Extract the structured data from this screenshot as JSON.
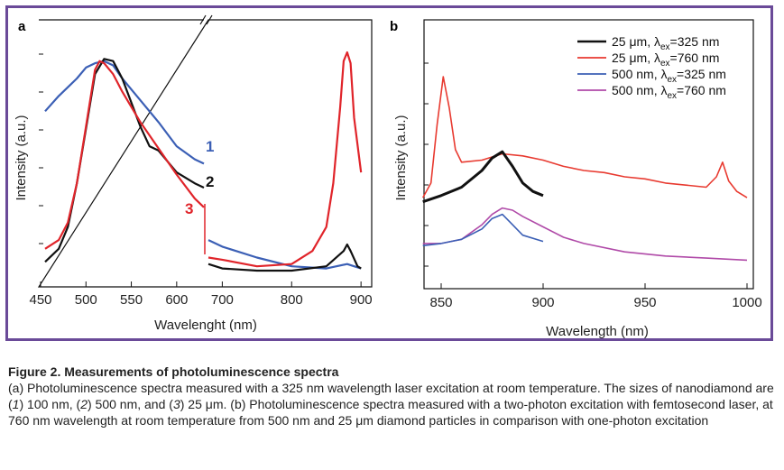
{
  "panels": {
    "a": {
      "letter": "a"
    },
    "b": {
      "letter": "b"
    }
  },
  "chart_data": [
    {
      "panel": "a",
      "type": "line",
      "xlabel": "Wavelenght (nm)",
      "ylabel": "Intensity (a.u.)",
      "x_ticks_left": [
        450,
        500,
        550,
        600
      ],
      "x_ticks_right": [
        700,
        800,
        900
      ],
      "x_break_between": [
        630,
        680
      ],
      "xlim": [
        450,
        905
      ],
      "ylim": [
        0,
        1
      ],
      "curve_labels": [
        {
          "text": "1",
          "color": "#3b5fb5"
        },
        {
          "text": "2",
          "color": "#111111"
        },
        {
          "text": "3",
          "color": "#e0242a"
        }
      ],
      "series": [
        {
          "color": "#3b5fb5",
          "x": [
            455,
            470,
            480,
            490,
            500,
            510,
            520,
            530,
            540,
            560,
            580,
            600,
            620,
            630,
            680,
            700,
            750,
            800,
            850,
            880,
            890,
            900
          ],
          "y": [
            0.73,
            0.8,
            0.84,
            0.88,
            0.93,
            0.95,
            0.96,
            0.94,
            0.88,
            0.78,
            0.68,
            0.57,
            0.51,
            0.49,
            0.14,
            0.11,
            0.06,
            0.02,
            0.01,
            0.03,
            0.02,
            0.01
          ]
        },
        {
          "color": "#111111",
          "x": [
            455,
            470,
            480,
            490,
            500,
            510,
            520,
            530,
            540,
            560,
            570,
            580,
            600,
            620,
            630,
            680,
            700,
            750,
            800,
            850,
            875,
            880,
            885,
            895,
            900
          ],
          "y": [
            0.04,
            0.1,
            0.2,
            0.4,
            0.65,
            0.9,
            0.97,
            0.96,
            0.88,
            0.66,
            0.57,
            0.55,
            0.45,
            0.4,
            0.38,
            0.03,
            0.01,
            0.0,
            0.0,
            0.02,
            0.09,
            0.12,
            0.09,
            0.02,
            0.01
          ]
        },
        {
          "color": "#e0242a",
          "x": [
            455,
            470,
            480,
            490,
            500,
            510,
            515,
            520,
            530,
            540,
            560,
            580,
            600,
            620,
            630,
            680,
            700,
            750,
            800,
            830,
            850,
            860,
            870,
            875,
            880,
            885,
            890,
            900
          ],
          "y": [
            0.1,
            0.14,
            0.22,
            0.4,
            0.66,
            0.92,
            0.96,
            0.95,
            0.9,
            0.82,
            0.68,
            0.56,
            0.44,
            0.33,
            0.29,
            0.06,
            0.05,
            0.02,
            0.03,
            0.09,
            0.2,
            0.4,
            0.75,
            0.96,
            1.0,
            0.95,
            0.7,
            0.45
          ]
        }
      ]
    },
    {
      "panel": "b",
      "type": "line",
      "xlabel": "Wavelength (nm)",
      "ylabel": "Intensity (a.u.)",
      "x_ticks": [
        850,
        900,
        950,
        1000
      ],
      "xlim": [
        840,
        1000
      ],
      "ylim": [
        0,
        1
      ],
      "legend_placement": "top-right",
      "series": [
        {
          "name": "25 μm, λex=325 nm",
          "name_main": "25 μm, λ",
          "name_sub": "ex",
          "name_end": "=325 nm",
          "color": "#111111",
          "x": [
            841,
            850,
            860,
            870,
            875,
            880,
            885,
            890,
            895,
            900
          ],
          "y": [
            0.33,
            0.36,
            0.4,
            0.48,
            0.54,
            0.57,
            0.5,
            0.42,
            0.38,
            0.36
          ]
        },
        {
          "name": "25 μm, λex=760 nm",
          "name_main": "25 μm, λ",
          "name_sub": "ex",
          "name_end": "=760 nm",
          "color": "#e83a30",
          "x": [
            841,
            845,
            848,
            851,
            854,
            857,
            860,
            870,
            880,
            890,
            900,
            910,
            920,
            930,
            940,
            950,
            960,
            970,
            980,
            985,
            988,
            991,
            995,
            1000
          ],
          "y": [
            0.35,
            0.42,
            0.7,
            0.93,
            0.78,
            0.58,
            0.52,
            0.53,
            0.56,
            0.55,
            0.53,
            0.5,
            0.48,
            0.47,
            0.45,
            0.44,
            0.42,
            0.41,
            0.4,
            0.45,
            0.52,
            0.43,
            0.38,
            0.35
          ]
        },
        {
          "name": "500 nm, λex=325 nm",
          "name_main": "500 nm, λ",
          "name_sub": "ex",
          "name_end": "=325 nm",
          "color": "#3b5fb5",
          "x": [
            841,
            850,
            860,
            870,
            875,
            880,
            885,
            890,
            900
          ],
          "y": [
            0.12,
            0.13,
            0.15,
            0.2,
            0.25,
            0.27,
            0.22,
            0.17,
            0.14
          ]
        },
        {
          "name": "500 nm, λex=760 nm",
          "name_main": "500 nm, λ",
          "name_sub": "ex",
          "name_end": "=760 nm",
          "color": "#b04aa8",
          "x": [
            841,
            850,
            860,
            870,
            875,
            880,
            885,
            890,
            900,
            910,
            920,
            940,
            960,
            980,
            1000
          ],
          "y": [
            0.13,
            0.13,
            0.15,
            0.22,
            0.27,
            0.3,
            0.29,
            0.26,
            0.21,
            0.16,
            0.13,
            0.09,
            0.07,
            0.06,
            0.05
          ]
        }
      ]
    }
  ],
  "caption": {
    "title": "Figure 2. Measurements of photoluminescence spectra",
    "body": "(a) Photoluminescence spectra measured with a 325 nm wavelength laser excitation at room temperature. The sizes of nanodiamond are (1) 100 nm, (2) 500 nm, and (3) 25 μm. (b) Photoluminescence spectra measured with a two-photon excitation with femtosecond laser, at 760 nm wavelength at room temperature from 500 nm and 25 μm diamond particles in comparison with one-photon excitation"
  }
}
